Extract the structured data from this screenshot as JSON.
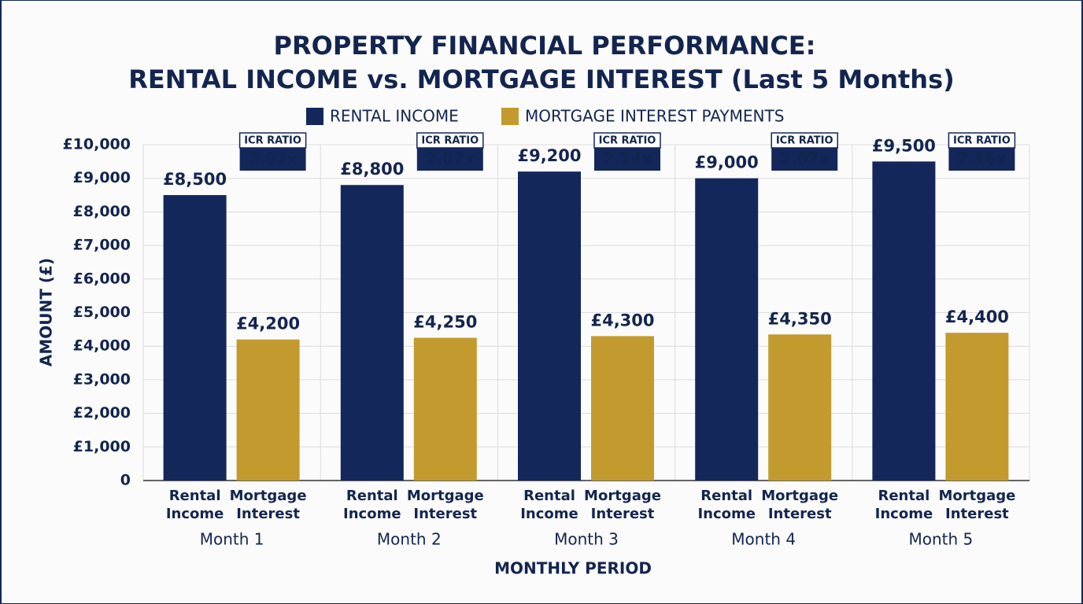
{
  "chart_data": {
    "type": "bar",
    "title": [
      "PROPERTY FINANCIAL PERFORMANCE:",
      "RENTAL INCOME vs. MORTGAGE INTEREST (Last 5 Months)"
    ],
    "x_label": "MONTHLY PERIOD",
    "y_label": "AMOUNT (£)",
    "categories": [
      "Month 1",
      "Month 2",
      "Month 3",
      "Month 4",
      "Month 5"
    ],
    "series": [
      {
        "name": "RENTAL INCOME",
        "bar_label": [
          "Rental",
          "Income"
        ],
        "color": "#13275a",
        "values": [
          8500,
          8800,
          9200,
          9000,
          9500
        ],
        "value_labels": [
          "£8,500",
          "£8,800",
          "£9,200",
          "£9,000",
          "£9,500"
        ]
      },
      {
        "name": "MORTGAGE INTEREST PAYMENTS",
        "bar_label": [
          "Mortgage",
          "Interest"
        ],
        "color": "#c39a2e",
        "values": [
          4200,
          4250,
          4300,
          4350,
          4400
        ],
        "value_labels": [
          "£4,200",
          "£4,250",
          "£4,300",
          "£4,350",
          "£4,400"
        ]
      }
    ],
    "icr_title": "ICR RATIO",
    "icr_ratios": [
      "2.02x",
      "2.07x",
      "2.14x",
      "2.07x",
      "2.16x"
    ],
    "ylim": [
      0,
      10000
    ],
    "yticks": [
      0,
      {
        "value": 1000,
        "label": "£1,000"
      },
      {
        "value": 2000,
        "label": "£2,000"
      },
      {
        "value": 3000,
        "label": "£3,000"
      },
      {
        "value": 4000,
        "label": "£4,000"
      },
      {
        "value": 5000,
        "label": "£5,000"
      },
      {
        "value": 6000,
        "label": "£6,000"
      },
      {
        "value": 7000,
        "label": "£7,000"
      },
      {
        "value": 8000,
        "label": "£8,000"
      },
      {
        "value": 9000,
        "label": "£9,000"
      },
      {
        "value": 10000,
        "label": "£10,000"
      }
    ],
    "grid": true,
    "legend_position": "top"
  }
}
